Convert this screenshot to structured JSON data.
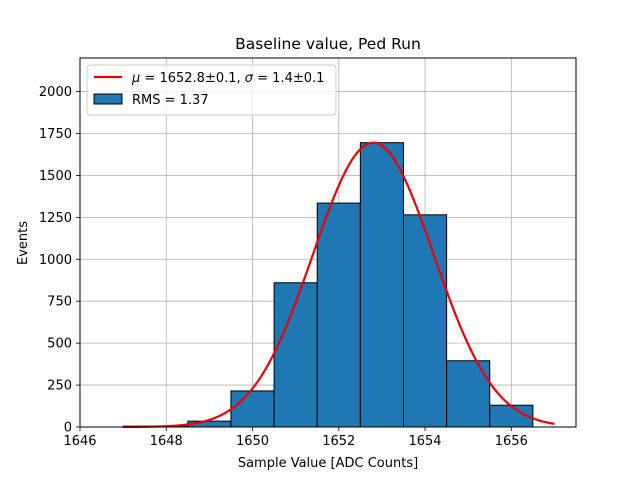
{
  "chart_data": {
    "type": "bar",
    "title": "Baseline value, Ped Run",
    "xlabel": "Sample Value [ADC Counts]",
    "ylabel": "Events",
    "xlim": [
      1646,
      1657.5
    ],
    "ylim": [
      0,
      2200
    ],
    "grid": true,
    "legend_position": "top-left",
    "x_ticks": [
      1646,
      1648,
      1650,
      1652,
      1654,
      1656
    ],
    "y_ticks": [
      0,
      250,
      500,
      750,
      1000,
      1250,
      1500,
      1750,
      2000
    ],
    "histogram": {
      "name": "RMS = 1.37",
      "color": "#1f77b4",
      "edgecolor": "#000000",
      "bin_edges": [
        1647.0,
        1647.95,
        1648.5,
        1649.5,
        1650.5,
        1651.5,
        1652.5,
        1653.5,
        1654.5,
        1655.5,
        1656.5
      ],
      "counts": [
        5,
        5,
        35,
        215,
        860,
        1335,
        1695,
        1265,
        395,
        130
      ]
    },
    "fit": {
      "name": "$\\mu = 1652.8\\pm0.1, \\sigma = 1.4\\pm0.1$",
      "label_parts": {
        "mu_symbol": "μ",
        "mu_value": " = 1652.8±0.1, ",
        "sigma_symbol": "σ",
        "sigma_value": " = 1.4±0.1"
      },
      "type": "gaussian",
      "mu": 1652.8,
      "sigma": 1.4,
      "amplitude": 1695,
      "x_range": [
        1647,
        1657
      ],
      "color": "#ee0000"
    }
  }
}
